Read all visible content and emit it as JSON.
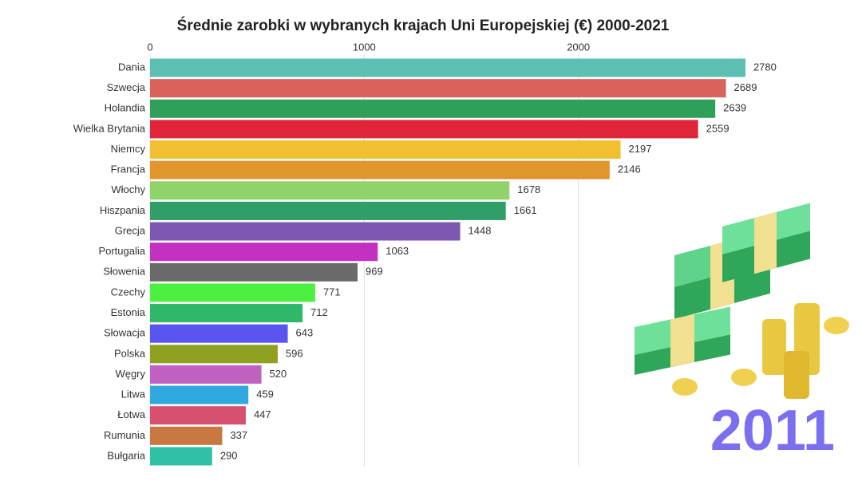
{
  "chart_data": {
    "type": "barh",
    "title": "Średnie zarobki w wybranych krajach Uni Europejskiej (€) 2000-2021",
    "annotation": "2011",
    "categories": [
      "Dania",
      "Szwecja",
      "Holandia",
      "Wielka Brytania",
      "Niemcy",
      "Francja",
      "Włochy",
      "Hiszpania",
      "Grecja",
      "Portugalia",
      "Słowenia",
      "Czechy",
      "Estonia",
      "Słowacja",
      "Polska",
      "Węgry",
      "Litwa",
      "Łotwa",
      "Rumunia",
      "Bułgaria"
    ],
    "values": [
      2780,
      2689,
      2639,
      2559,
      2197,
      2146,
      1678,
      1661,
      1448,
      1063,
      969,
      771,
      712,
      643,
      596,
      520,
      459,
      447,
      337,
      290
    ],
    "colors": [
      "#5dbfb2",
      "#d9625a",
      "#2ea05a",
      "#e0243a",
      "#f0c030",
      "#e0952d",
      "#8fd36a",
      "#2f9e68",
      "#7e58b0",
      "#c430c0",
      "#6a6a6a",
      "#4cf040",
      "#2fb86a",
      "#5a55f0",
      "#8fa020",
      "#c060c0",
      "#30a8e0",
      "#d85070",
      "#c87840",
      "#30c0a8"
    ],
    "xlim": [
      0,
      3000
    ],
    "xticks": [
      0,
      1000,
      2000
    ],
    "grid": true
  }
}
